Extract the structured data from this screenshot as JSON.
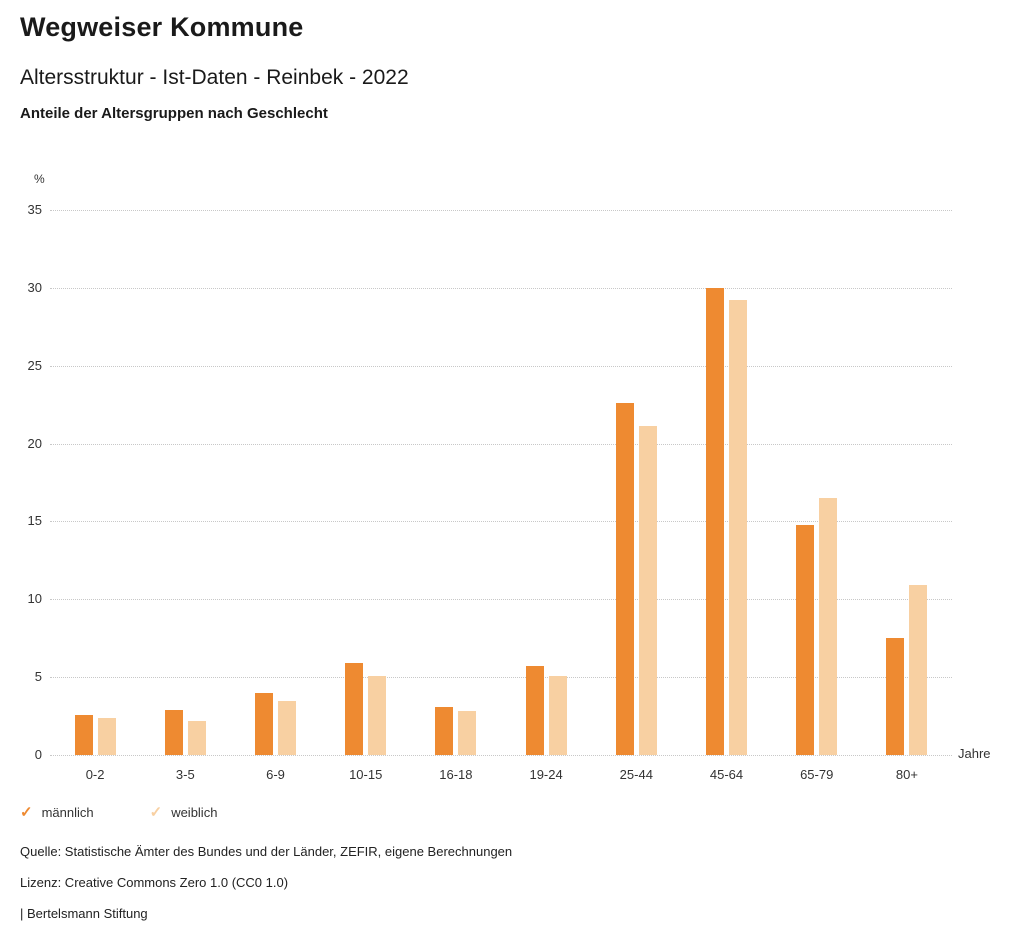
{
  "header": {
    "title": "Wegweiser Kommune",
    "subtitle": "Altersstruktur - Ist-Daten - Reinbek - 2022",
    "caption": "Anteile der Altersgruppen nach Geschlecht"
  },
  "chart_data": {
    "type": "bar",
    "title": "Anteile der Altersgruppen nach Geschlecht",
    "categories": [
      "0-2",
      "3-5",
      "6-9",
      "10-15",
      "16-18",
      "19-24",
      "25-44",
      "45-64",
      "65-79",
      "80+"
    ],
    "series": [
      {
        "name": "männlich",
        "color": "#ee8a31",
        "values": [
          2.6,
          2.9,
          4.0,
          5.9,
          3.1,
          5.7,
          22.6,
          30.0,
          14.8,
          7.5
        ]
      },
      {
        "name": "weiblich",
        "color": "#f8d0a2",
        "values": [
          2.4,
          2.2,
          3.5,
          5.1,
          2.8,
          5.1,
          21.1,
          29.2,
          16.5,
          10.9
        ]
      }
    ],
    "xlabel": "Jahre",
    "ylabel": "%",
    "ylim": [
      0,
      35
    ],
    "ytick_step": 5,
    "grid": "dotted-horizontal",
    "legend_position": "bottom-left"
  },
  "legend": {
    "check_icon": "✓"
  },
  "footer": {
    "source": "Quelle: Statistische Ämter des Bundes und der Länder, ZEFIR, eigene Berechnungen",
    "license": "Lizenz: Creative Commons Zero 1.0 (CC0 1.0)",
    "brand": "| Bertelsmann Stiftung"
  }
}
